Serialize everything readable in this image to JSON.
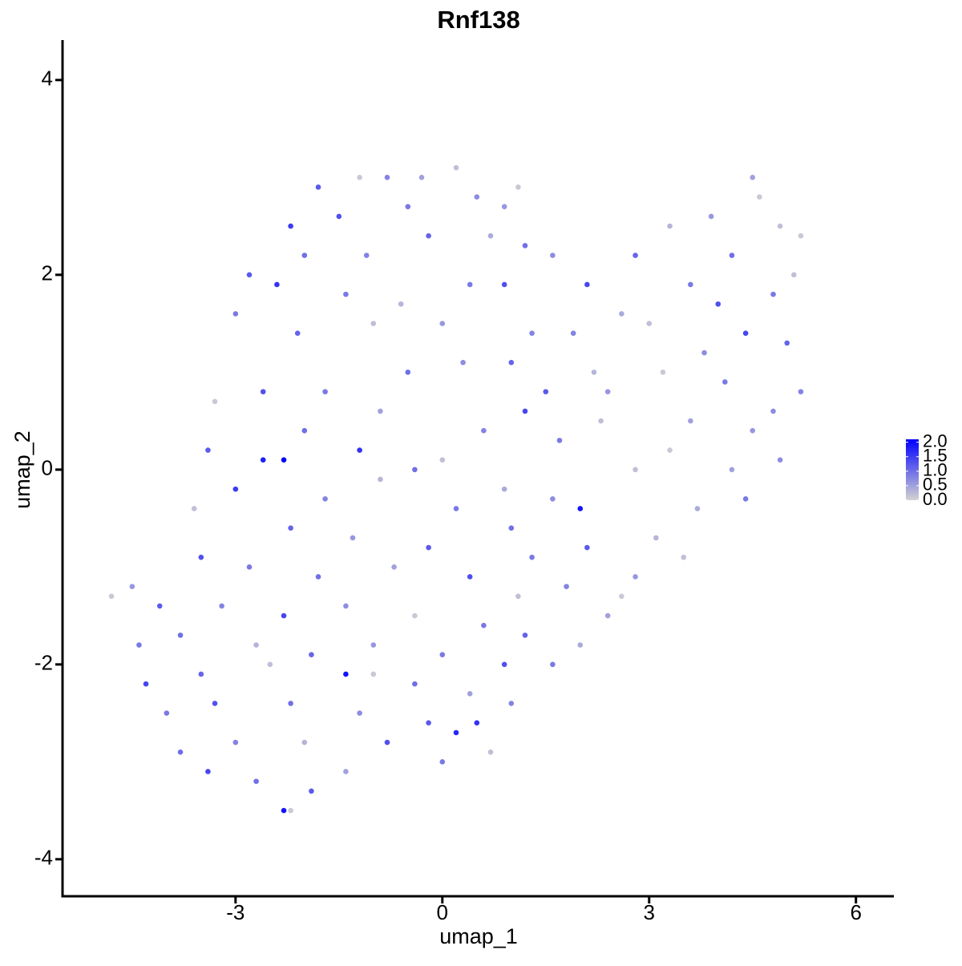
{
  "chart_data": {
    "type": "scatter",
    "title": "Rnf138",
    "x_label": "umap_1",
    "y_label": "umap_2",
    "xlim": [
      -5.51,
      6.55
    ],
    "ylim": [
      -4.38,
      4.41
    ],
    "xticks": [
      -3,
      0,
      3,
      6
    ],
    "yticks": [
      -4,
      -2,
      0,
      2,
      4
    ],
    "low_color": "#d3d3d3",
    "high_color": "#0000ff",
    "color_lim": [
      0,
      2.1
    ],
    "color_ticks": [
      {
        "value": 0,
        "label": "0.0"
      },
      0.5,
      {
        "value": 1,
        "label": "1.0"
      },
      1.5,
      {
        "value": 2,
        "label": "2.0"
      }
    ],
    "x": [
      -1.8,
      -1.2,
      -0.8,
      -0.3,
      0.2,
      0.5,
      -1.5,
      -0.5,
      -2.2,
      0.9,
      1.1,
      -2.0,
      -1.1,
      -0.2,
      0.7,
      1.2,
      -2.8,
      -2.4,
      -1.4,
      -0.6,
      0.4,
      0.9,
      1.6,
      -3.0,
      -2.1,
      -1.0,
      0.0,
      1.3,
      2.1,
      2.8,
      3.3,
      3.9,
      4.5,
      4.6,
      4.9,
      5.2,
      4.2,
      3.6,
      2.6,
      1.9,
      3.0,
      4.0,
      4.8,
      5.1,
      5.0,
      4.4,
      3.8,
      2.2,
      1.5,
      2.4,
      3.2,
      4.1,
      4.8,
      5.2,
      4.5,
      3.6,
      2.3,
      1.7,
      3.3,
      4.2,
      4.9,
      4.4,
      3.7,
      3.1,
      3.5,
      2.8,
      2.6,
      2.1,
      2.4,
      1.8,
      2.0,
      1.6,
      2.0,
      2.8,
      -0.5,
      0.3,
      1.0,
      -1.7,
      -2.6,
      -3.3,
      -0.9,
      0.6,
      1.2,
      -2.0,
      -1.2,
      0.0,
      -3.4,
      -2.6,
      -0.4,
      0.9,
      1.6,
      -3.0,
      -1.7,
      -0.9,
      0.2,
      -3.6,
      -2.2,
      -1.3,
      1.0,
      -0.2,
      1.3,
      -3.5,
      -2.8,
      -1.8,
      -0.7,
      0.4,
      1.1,
      -4.5,
      -4.1,
      -3.2,
      -2.3,
      -1.4,
      -0.4,
      0.6,
      1.2,
      -3.8,
      -2.7,
      -1.9,
      -1.0,
      0.0,
      0.9,
      -4.3,
      -3.5,
      -2.5,
      -1.4,
      -0.4,
      0.4,
      1.0,
      -4.0,
      -3.3,
      -2.2,
      -1.2,
      -0.2,
      0.5,
      -3.8,
      -3.0,
      -2.0,
      -0.8,
      0.0,
      0.7,
      -3.4,
      -2.7,
      -1.4,
      -2.3,
      -2.2,
      -1.9,
      -4.8,
      -4.4,
      -2.3,
      -1.0,
      0.2
    ],
    "values": [
      2.9,
      3.0,
      3.0,
      3.0,
      3.1,
      2.8,
      2.6,
      2.7,
      2.5,
      2.7,
      2.9,
      2.2,
      2.2,
      2.4,
      2.4,
      2.3,
      2.0,
      1.9,
      1.8,
      1.7,
      1.9,
      1.9,
      2.2,
      1.6,
      1.4,
      1.5,
      1.5,
      1.4,
      1.9,
      2.2,
      2.5,
      2.6,
      3.0,
      2.8,
      2.5,
      2.4,
      2.2,
      1.9,
      1.6,
      1.4,
      1.5,
      1.7,
      1.8,
      2.0,
      1.3,
      1.4,
      1.2,
      1.0,
      0.8,
      0.8,
      1.0,
      0.9,
      0.6,
      0.8,
      0.4,
      0.5,
      0.5,
      0.3,
      0.2,
      0.0,
      0.1,
      -0.3,
      -0.4,
      -0.7,
      -0.9,
      -1.1,
      -1.3,
      -0.8,
      -1.5,
      -1.2,
      -1.8,
      -2.0,
      -0.4,
      0.0,
      1.0,
      1.1,
      1.1,
      0.8,
      0.8,
      0.7,
      0.6,
      0.4,
      0.6,
      0.4,
      0.2,
      0.1,
      0.2,
      0.1,
      0.0,
      -0.2,
      -0.3,
      -0.2,
      -0.3,
      -0.1,
      -0.4,
      -0.4,
      -0.6,
      -0.7,
      -0.6,
      -0.8,
      -0.9,
      -0.9,
      -1.0,
      -1.1,
      -1.0,
      -1.1,
      -1.3,
      -1.2,
      -1.4,
      -1.4,
      -1.5,
      -1.4,
      -1.5,
      -1.6,
      -1.7,
      -1.7,
      -1.8,
      -1.9,
      -1.8,
      -1.9,
      -2.0,
      -2.2,
      -2.1,
      -2.0,
      -2.1,
      -2.2,
      -2.3,
      -2.4,
      -2.5,
      -2.4,
      -2.4,
      -2.5,
      -2.6,
      -2.6,
      -2.9,
      -2.8,
      -2.8,
      -2.8,
      -3.0,
      -2.9,
      -3.1,
      -3.2,
      -3.1,
      -3.5,
      -3.5,
      -3.3,
      -1.3,
      -1.8,
      0.1,
      -2.1,
      -2.7
    ],
    "expression": [
      1.2,
      0.1,
      0.8,
      0.5,
      0.2,
      0.7,
      1.3,
      0.9,
      1.5,
      0.6,
      0.1,
      1.0,
      0.8,
      1.1,
      0.4,
      1.0,
      1.2,
      1.6,
      0.9,
      0.3,
      0.9,
      1.3,
      0.7,
      0.9,
      1.1,
      0.2,
      0.6,
      0.8,
      1.4,
      1.1,
      0.3,
      0.6,
      0.5,
      0.1,
      0.2,
      0.1,
      1.0,
      0.9,
      0.4,
      0.8,
      0.2,
      1.3,
      0.9,
      0.2,
      1.1,
      1.4,
      0.7,
      0.3,
      1.2,
      0.6,
      0.1,
      0.9,
      0.7,
      0.8,
      0.6,
      0.5,
      0.2,
      0.9,
      0.1,
      0.5,
      0.7,
      0.9,
      0.4,
      0.3,
      0.2,
      0.6,
      0.1,
      1.2,
      0.5,
      0.8,
      0.4,
      0.9,
      1.9,
      0.2,
      1.0,
      0.7,
      1.1,
      0.9,
      1.3,
      0.1,
      0.5,
      0.8,
      1.4,
      1.0,
      1.6,
      0.2,
      1.2,
      1.8,
      1.0,
      0.4,
      0.7,
      1.5,
      0.8,
      0.3,
      0.9,
      0.2,
      1.1,
      0.6,
      1.0,
      1.2,
      0.9,
      1.3,
      0.9,
      1.0,
      0.5,
      1.3,
      0.2,
      0.6,
      1.2,
      0.8,
      1.4,
      0.7,
      0.1,
      0.9,
      1.1,
      1.0,
      0.3,
      1.1,
      0.6,
      0.9,
      1.3,
      1.4,
      1.1,
      0.2,
      1.9,
      1.0,
      0.5,
      0.8,
      0.9,
      1.3,
      1.0,
      0.7,
      1.2,
      1.6,
      1.0,
      0.8,
      0.3,
      1.3,
      0.9,
      0.2,
      1.4,
      1.0,
      0.5,
      1.9,
      0.1,
      1.2,
      0.1,
      0.9,
      2.1,
      0.1,
      1.7
    ]
  }
}
